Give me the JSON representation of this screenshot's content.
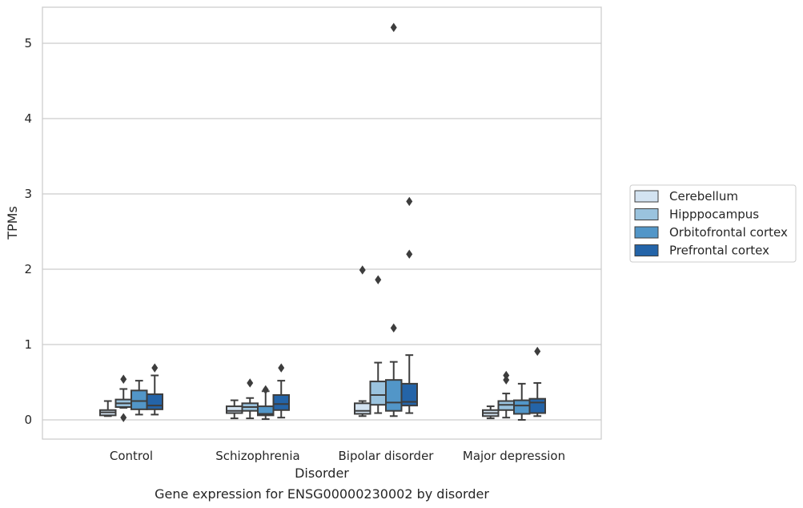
{
  "chart_data": {
    "type": "boxplot",
    "caption": "Gene expression for ENSG00000230002 by disorder",
    "xlabel": "Disorder",
    "ylabel": "TPMs",
    "ylim": [
      -0.25,
      5.5
    ],
    "yticks": [
      0,
      1,
      2,
      3,
      4,
      5
    ],
    "grid": true,
    "legend_position": "right",
    "categories": [
      "Control",
      "Schizophrenia",
      "Bipolar disorder",
      "Major depression"
    ],
    "series": [
      {
        "name": "Cerebellum",
        "color": "#d3e3f1",
        "boxes": [
          {
            "whislo": 0.05,
            "q1": 0.06,
            "med": 0.1,
            "q3": 0.13,
            "whishi": 0.25,
            "fliers": []
          },
          {
            "whislo": 0.02,
            "q1": 0.09,
            "med": 0.12,
            "q3": 0.18,
            "whishi": 0.26,
            "fliers": []
          },
          {
            "whislo": 0.05,
            "q1": 0.08,
            "med": 0.12,
            "q3": 0.22,
            "whishi": 0.25,
            "fliers": [
              1.99
            ]
          },
          {
            "whislo": 0.02,
            "q1": 0.05,
            "med": 0.09,
            "q3": 0.13,
            "whishi": 0.18,
            "fliers": []
          }
        ]
      },
      {
        "name": "Hipppocampus",
        "color": "#9ac3de",
        "boxes": [
          {
            "whislo": 0.16,
            "q1": 0.17,
            "med": 0.22,
            "q3": 0.27,
            "whishi": 0.41,
            "fliers": [
              0.54,
              0.03
            ]
          },
          {
            "whislo": 0.02,
            "q1": 0.12,
            "med": 0.17,
            "q3": 0.22,
            "whishi": 0.29,
            "fliers": [
              0.49
            ]
          },
          {
            "whislo": 0.09,
            "q1": 0.2,
            "med": 0.33,
            "q3": 0.51,
            "whishi": 0.76,
            "fliers": [
              1.86
            ]
          },
          {
            "whislo": 0.03,
            "q1": 0.13,
            "med": 0.2,
            "q3": 0.25,
            "whishi": 0.35,
            "fliers": [
              0.59,
              0.53
            ]
          }
        ]
      },
      {
        "name": "Orbitofrontal cortex",
        "color": "#5296c8",
        "boxes": [
          {
            "whislo": 0.07,
            "q1": 0.14,
            "med": 0.25,
            "q3": 0.39,
            "whishi": 0.52,
            "fliers": []
          },
          {
            "whislo": 0.01,
            "q1": 0.06,
            "med": 0.08,
            "q3": 0.18,
            "whishi": 0.38,
            "fliers": [
              0.4
            ]
          },
          {
            "whislo": 0.05,
            "q1": 0.12,
            "med": 0.23,
            "q3": 0.53,
            "whishi": 0.77,
            "fliers": [
              1.22,
              5.21
            ]
          },
          {
            "whislo": 0.0,
            "q1": 0.08,
            "med": 0.19,
            "q3": 0.26,
            "whishi": 0.48,
            "fliers": []
          }
        ]
      },
      {
        "name": "Prefrontal cortex",
        "color": "#2464a8",
        "boxes": [
          {
            "whislo": 0.07,
            "q1": 0.14,
            "med": 0.19,
            "q3": 0.34,
            "whishi": 0.59,
            "fliers": [
              0.69
            ]
          },
          {
            "whislo": 0.03,
            "q1": 0.13,
            "med": 0.21,
            "q3": 0.33,
            "whishi": 0.52,
            "fliers": [
              0.69
            ]
          },
          {
            "whislo": 0.09,
            "q1": 0.19,
            "med": 0.24,
            "q3": 0.48,
            "whishi": 0.86,
            "fliers": [
              2.2,
              2.9
            ]
          },
          {
            "whislo": 0.05,
            "q1": 0.09,
            "med": 0.23,
            "q3": 0.28,
            "whishi": 0.49,
            "fliers": [
              0.91
            ]
          }
        ]
      }
    ]
  }
}
